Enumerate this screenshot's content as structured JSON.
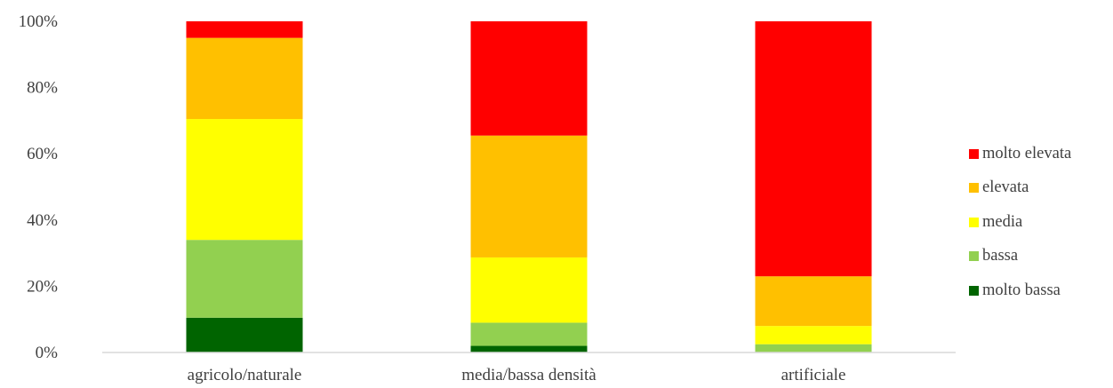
{
  "chart_data": {
    "type": "bar",
    "stacked": true,
    "normalized": true,
    "categories": [
      "agricolo/naturale",
      "media/bassa densità",
      "artificiale"
    ],
    "series": [
      {
        "name": "molto bassa",
        "color": "#006400",
        "values": [
          10.5,
          2.0,
          0.0
        ]
      },
      {
        "name": "bassa",
        "color": "#92D050",
        "values": [
          23.5,
          7.0,
          2.5
        ]
      },
      {
        "name": "media",
        "color": "#FFFF00",
        "values": [
          36.5,
          19.7,
          5.5
        ]
      },
      {
        "name": "elevata",
        "color": "#FFC000",
        "values": [
          24.5,
          36.8,
          15.0
        ]
      },
      {
        "name": "molto elevata",
        "color": "#FF0000",
        "values": [
          5.0,
          34.5,
          77.0
        ]
      }
    ],
    "ylim": [
      0,
      100
    ],
    "yticks": [
      0,
      20,
      40,
      60,
      80,
      100
    ],
    "ytick_labels": [
      "0%",
      "20%",
      "40%",
      "60%",
      "80%",
      "100%"
    ],
    "title": "",
    "xlabel": "",
    "ylabel": "",
    "grid": false,
    "legend_position": "right",
    "legend_order": [
      "molto elevata",
      "elevata",
      "media",
      "bassa",
      "molto bassa"
    ]
  }
}
